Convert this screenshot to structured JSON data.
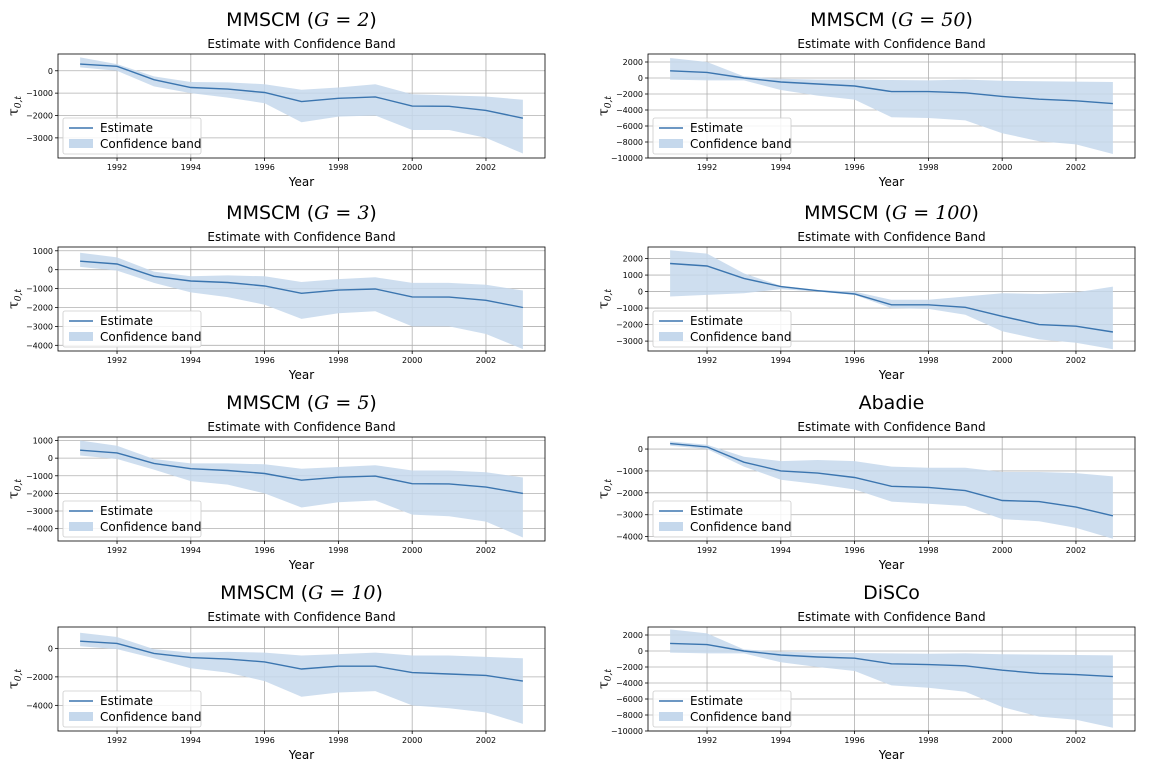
{
  "colors": {
    "line": "#3b75af",
    "band": "#c5d8ec",
    "grid": "#b0b0b0",
    "axis": "#000000"
  },
  "chart_data": [
    {
      "type": "line",
      "main_title": "MMSCM (",
      "main_math": "G = 2",
      "main_close": ")",
      "title": "Estimate with Confidence Band",
      "xlabel": "Year",
      "ylabel": "τ0,t",
      "x": [
        1991,
        1992,
        1993,
        1994,
        1995,
        1996,
        1997,
        1998,
        1999,
        2000,
        2001,
        2002,
        2003
      ],
      "xticks": [
        1992,
        1994,
        1996,
        1998,
        2000,
        2002
      ],
      "xlim": [
        1990.4,
        2003.6
      ],
      "ylim": [
        -3900,
        750
      ],
      "yticks": [
        0,
        -1000,
        -2000,
        -3000
      ],
      "series": [
        {
          "name": "Estimate",
          "values": [
            300,
            200,
            -400,
            -750,
            -820,
            -970,
            -1380,
            -1230,
            -1170,
            -1580,
            -1590,
            -1770,
            -2120
          ]
        }
      ],
      "band": {
        "name": "Confidence band",
        "lower": [
          150,
          0,
          -700,
          -1000,
          -1200,
          -1450,
          -2300,
          -2050,
          -2000,
          -2650,
          -2650,
          -3000,
          -3700
        ],
        "upper": [
          600,
          300,
          -250,
          -500,
          -520,
          -600,
          -850,
          -750,
          -600,
          -1050,
          -1100,
          -1150,
          -1300
        ]
      },
      "legend": "lower-left",
      "grid": true
    },
    {
      "type": "line",
      "main_title": "MMSCM (",
      "main_math": "G = 3",
      "main_close": ")",
      "title": "Estimate with Confidence Band",
      "xlabel": "Year",
      "ylabel": "τ0,t",
      "x": [
        1991,
        1992,
        1993,
        1994,
        1995,
        1996,
        1997,
        1998,
        1999,
        2000,
        2001,
        2002,
        2003
      ],
      "xticks": [
        1992,
        1994,
        1996,
        1998,
        2000,
        2002
      ],
      "xlim": [
        1990.4,
        2003.6
      ],
      "ylim": [
        -4300,
        1200
      ],
      "yticks": [
        1000,
        0,
        -1000,
        -2000,
        -3000,
        -4000
      ],
      "series": [
        {
          "name": "Estimate",
          "values": [
            450,
            300,
            -350,
            -600,
            -680,
            -860,
            -1250,
            -1080,
            -1020,
            -1440,
            -1450,
            -1620,
            -2000
          ]
        }
      ],
      "band": {
        "name": "Confidence band",
        "lower": [
          150,
          -50,
          -700,
          -1200,
          -1450,
          -1850,
          -2600,
          -2300,
          -2200,
          -3000,
          -3000,
          -3400,
          -4200
        ],
        "upper": [
          900,
          650,
          -100,
          -350,
          -300,
          -350,
          -650,
          -500,
          -400,
          -700,
          -700,
          -800,
          -1100
        ]
      },
      "legend": "lower-left",
      "grid": true
    },
    {
      "type": "line",
      "main_title": "MMSCM (",
      "main_math": "G = 5",
      "main_close": ")",
      "title": "Estimate with Confidence Band",
      "xlabel": "Year",
      "ylabel": "τ0,t",
      "x": [
        1991,
        1992,
        1993,
        1994,
        1995,
        1996,
        1997,
        1998,
        1999,
        2000,
        2001,
        2002,
        2003
      ],
      "xticks": [
        1992,
        1994,
        1996,
        1998,
        2000,
        2002
      ],
      "xlim": [
        1990.4,
        2003.6
      ],
      "ylim": [
        -4700,
        1200
      ],
      "yticks": [
        1000,
        0,
        -1000,
        -2000,
        -3000,
        -4000
      ],
      "series": [
        {
          "name": "Estimate",
          "values": [
            450,
            300,
            -300,
            -600,
            -700,
            -870,
            -1250,
            -1080,
            -1020,
            -1450,
            -1460,
            -1640,
            -2000
          ]
        }
      ],
      "band": {
        "name": "Confidence band",
        "lower": [
          150,
          -50,
          -650,
          -1300,
          -1500,
          -2000,
          -2800,
          -2500,
          -2400,
          -3200,
          -3300,
          -3600,
          -4500
        ],
        "upper": [
          1000,
          700,
          -50,
          -300,
          -300,
          -350,
          -600,
          -500,
          -400,
          -700,
          -700,
          -800,
          -1100
        ]
      },
      "legend": "lower-left",
      "grid": true
    },
    {
      "type": "line",
      "main_title": "MMSCM (",
      "main_math": "G = 10",
      "main_close": ")",
      "title": "Estimate with Confidence Band",
      "xlabel": "Year",
      "ylabel": "τ0,t",
      "x": [
        1991,
        1992,
        1993,
        1994,
        1995,
        1996,
        1997,
        1998,
        1999,
        2000,
        2001,
        2002,
        2003
      ],
      "xticks": [
        1992,
        1994,
        1996,
        1998,
        2000,
        2002
      ],
      "xlim": [
        1990.4,
        2003.6
      ],
      "ylim": [
        -5800,
        1500
      ],
      "yticks": [
        0,
        -2000,
        -4000
      ],
      "series": [
        {
          "name": "Estimate",
          "values": [
            500,
            350,
            -350,
            -650,
            -750,
            -950,
            -1450,
            -1250,
            -1250,
            -1700,
            -1800,
            -1900,
            -2300
          ]
        }
      ],
      "band": {
        "name": "Confidence band",
        "lower": [
          150,
          -50,
          -700,
          -1400,
          -1700,
          -2300,
          -3400,
          -3100,
          -3000,
          -4000,
          -4200,
          -4500,
          -5300
        ],
        "upper": [
          1100,
          800,
          -50,
          -300,
          -250,
          -300,
          -500,
          -400,
          -300,
          -500,
          -500,
          -600,
          -700
        ]
      },
      "legend": "lower-left",
      "grid": true
    },
    {
      "type": "line",
      "main_title": "MMSCM (",
      "main_math": "G = 50",
      "main_close": ")",
      "title": "Estimate with Confidence Band",
      "xlabel": "Year",
      "ylabel": "τ0,t",
      "x": [
        1991,
        1992,
        1993,
        1994,
        1995,
        1996,
        1997,
        1998,
        1999,
        2000,
        2001,
        2002,
        2003
      ],
      "xticks": [
        1992,
        1994,
        1996,
        1998,
        2000,
        2002
      ],
      "xlim": [
        1990.4,
        2003.6
      ],
      "ylim": [
        -10000,
        3000
      ],
      "yticks": [
        2000,
        0,
        -2000,
        -4000,
        -6000,
        -8000,
        -10000
      ],
      "series": [
        {
          "name": "Estimate",
          "values": [
            900,
            700,
            0,
            -500,
            -750,
            -1000,
            -1700,
            -1700,
            -1850,
            -2300,
            -2650,
            -2850,
            -3200
          ]
        }
      ],
      "band": {
        "name": "Confidence band",
        "lower": [
          -200,
          -300,
          -300,
          -1500,
          -2200,
          -2700,
          -4900,
          -5000,
          -5300,
          -6900,
          -7900,
          -8300,
          -9500
        ],
        "upper": [
          2500,
          2000,
          200,
          -100,
          -200,
          -200,
          -250,
          -300,
          -200,
          -350,
          -400,
          -450,
          -500
        ]
      },
      "legend": "lower-left",
      "grid": true
    },
    {
      "type": "line",
      "main_title": "MMSCM (",
      "main_math": "G = 100",
      "main_close": ")",
      "title": "Estimate with Confidence Band",
      "xlabel": "Year",
      "ylabel": "τ0,t",
      "x": [
        1991,
        1992,
        1993,
        1994,
        1995,
        1996,
        1997,
        1998,
        1999,
        2000,
        2001,
        2002,
        2003
      ],
      "xticks": [
        1992,
        1994,
        1996,
        1998,
        2000,
        2002
      ],
      "xlim": [
        1990.4,
        2003.6
      ],
      "ylim": [
        -3600,
        2700
      ],
      "yticks": [
        2000,
        1000,
        0,
        -1000,
        -2000,
        -3000
      ],
      "series": [
        {
          "name": "Estimate",
          "values": [
            1700,
            1550,
            800,
            300,
            50,
            -150,
            -800,
            -800,
            -950,
            -1500,
            -2000,
            -2100,
            -2450
          ]
        }
      ],
      "band": {
        "name": "Confidence band",
        "lower": [
          -300,
          -200,
          -100,
          150,
          0,
          -200,
          -1000,
          -1050,
          -1400,
          -2400,
          -2900,
          -3100,
          -3500
        ],
        "upper": [
          2500,
          2300,
          1100,
          350,
          100,
          0,
          -500,
          -500,
          -300,
          -100,
          -150,
          -50,
          300
        ]
      },
      "legend": "lower-left",
      "grid": true
    },
    {
      "type": "line",
      "main_title": "Abadie",
      "main_math": "",
      "main_close": "",
      "title": "Estimate with Confidence Band",
      "xlabel": "Year",
      "ylabel": "τ0,t",
      "x": [
        1991,
        1992,
        1993,
        1994,
        1995,
        1996,
        1997,
        1998,
        1999,
        2000,
        2001,
        2002,
        2003
      ],
      "xticks": [
        1992,
        1994,
        1996,
        1998,
        2000,
        2002
      ],
      "xlim": [
        1990.4,
        2003.6
      ],
      "ylim": [
        -4200,
        550
      ],
      "yticks": [
        0,
        -1000,
        -2000,
        -3000,
        -4000
      ],
      "series": [
        {
          "name": "Estimate",
          "values": [
            250,
            100,
            -600,
            -1000,
            -1100,
            -1300,
            -1700,
            -1750,
            -1900,
            -2350,
            -2400,
            -2650,
            -3050
          ]
        }
      ],
      "band": {
        "name": "Confidence band",
        "lower": [
          150,
          0,
          -800,
          -1400,
          -1600,
          -1850,
          -2400,
          -2500,
          -2600,
          -3200,
          -3300,
          -3600,
          -4100
        ],
        "upper": [
          350,
          200,
          -350,
          -550,
          -500,
          -550,
          -800,
          -850,
          -850,
          -1050,
          -1050,
          -1100,
          -1250
        ]
      },
      "legend": "lower-left",
      "grid": true
    },
    {
      "type": "line",
      "main_title": "DiSCo",
      "main_math": "",
      "main_close": "",
      "title": "Estimate with Confidence Band",
      "xlabel": "Year",
      "ylabel": "τ0,t",
      "x": [
        1991,
        1992,
        1993,
        1994,
        1995,
        1996,
        1997,
        1998,
        1999,
        2000,
        2001,
        2002,
        2003
      ],
      "xticks": [
        1992,
        1994,
        1996,
        1998,
        2000,
        2002
      ],
      "xlim": [
        1990.4,
        2003.6
      ],
      "ylim": [
        -10000,
        3000
      ],
      "yticks": [
        2000,
        0,
        -2000,
        -4000,
        -6000,
        -8000,
        -10000
      ],
      "series": [
        {
          "name": "Estimate",
          "values": [
            950,
            800,
            0,
            -500,
            -750,
            -900,
            -1600,
            -1700,
            -1850,
            -2400,
            -2800,
            -2950,
            -3200
          ]
        }
      ],
      "band": {
        "name": "Confidence band",
        "lower": [
          -200,
          -300,
          -300,
          -1400,
          -2000,
          -2500,
          -4300,
          -4600,
          -5100,
          -7000,
          -8200,
          -8600,
          -9600
        ],
        "upper": [
          2700,
          2200,
          200,
          -100,
          -200,
          -250,
          -300,
          -350,
          -300,
          -400,
          -450,
          -500,
          -550
        ]
      },
      "legend": "lower-left",
      "grid": true
    }
  ]
}
